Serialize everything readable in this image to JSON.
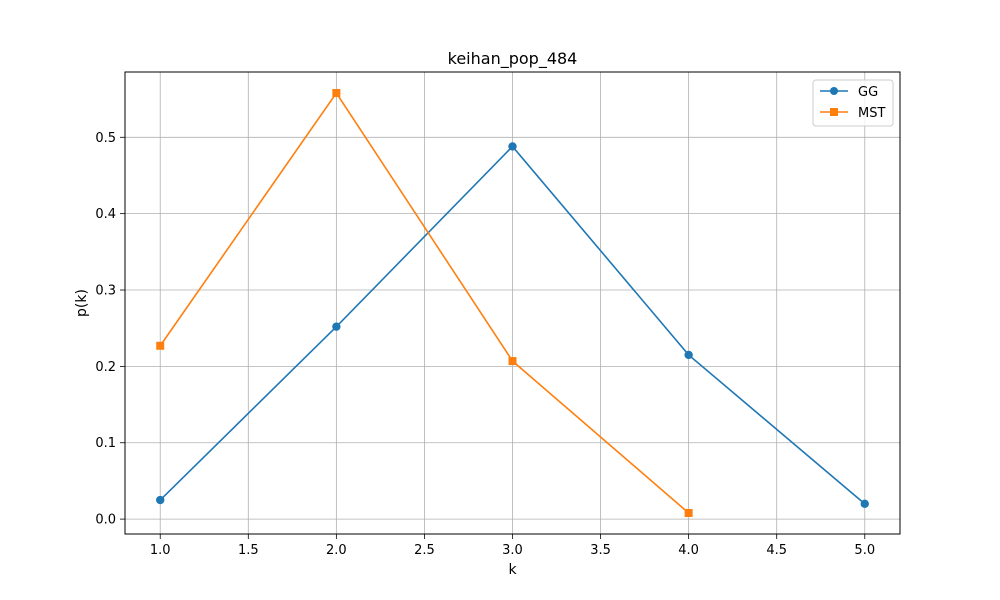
{
  "chart_data": {
    "type": "line",
    "title": "keihan_pop_484",
    "xlabel": "k",
    "ylabel": "p(k)",
    "xlim": [
      0.8,
      5.2
    ],
    "ylim": [
      -0.0195,
      0.5855
    ],
    "xticks": [
      1.0,
      1.5,
      2.0,
      2.5,
      3.0,
      3.5,
      4.0,
      4.5,
      5.0
    ],
    "xtick_labels": [
      "1.0",
      "1.5",
      "2.0",
      "2.5",
      "3.0",
      "3.5",
      "4.0",
      "4.5",
      "5.0"
    ],
    "yticks": [
      0.0,
      0.1,
      0.2,
      0.3,
      0.4,
      0.5
    ],
    "ytick_labels": [
      "0.0",
      "0.1",
      "0.2",
      "0.3",
      "0.4",
      "0.5"
    ],
    "grid": true,
    "legend_position": "top-right",
    "series": [
      {
        "name": "GG",
        "color": "#1f77b4",
        "marker": "circle",
        "x": [
          1,
          2,
          3,
          4,
          5
        ],
        "y": [
          0.025,
          0.252,
          0.488,
          0.215,
          0.02
        ]
      },
      {
        "name": "MST",
        "color": "#ff7f0e",
        "marker": "square",
        "x": [
          1,
          2,
          3,
          4
        ],
        "y": [
          0.227,
          0.558,
          0.207,
          0.008
        ]
      }
    ]
  }
}
